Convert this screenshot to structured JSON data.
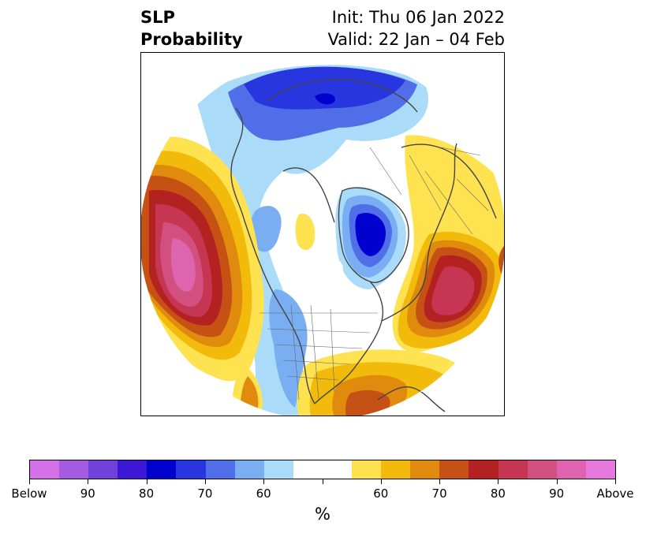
{
  "title": {
    "line1_left": "SLP",
    "line2_left": "Probability",
    "line1_right": "Init: Thu 06 Jan 2022",
    "line2_right": "Valid: 22 Jan – 04 Feb"
  },
  "colorbar": {
    "label": "%",
    "colors": [
      "#d670e8",
      "#a55ae2",
      "#7141dc",
      "#3c18d6",
      "#0000cf",
      "#2836e0",
      "#4f6ee8",
      "#79aef2",
      "#aadcfa",
      "#ffffff",
      "#ffffff",
      "#ffe24f",
      "#f2ba0a",
      "#e08a0e",
      "#c65114",
      "#b42121",
      "#c63552",
      "#d2507f",
      "#df64b0",
      "#e678de"
    ],
    "ticks": [
      {
        "label": "Below",
        "frac": 0.0
      },
      {
        "label": "90",
        "frac": 0.1
      },
      {
        "label": "80",
        "frac": 0.2
      },
      {
        "label": "70",
        "frac": 0.3
      },
      {
        "label": "60",
        "frac": 0.4
      },
      {
        "label": "",
        "frac": 0.5
      },
      {
        "label": "60",
        "frac": 0.6
      },
      {
        "label": "70",
        "frac": 0.7
      },
      {
        "label": "80",
        "frac": 0.8
      },
      {
        "label": "90",
        "frac": 0.9
      },
      {
        "label": "Above",
        "frac": 1.0
      }
    ]
  }
}
